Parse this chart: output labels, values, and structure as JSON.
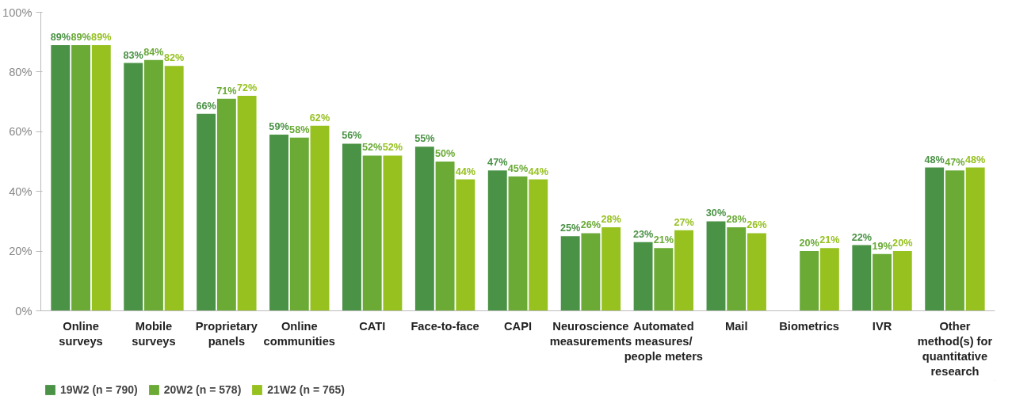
{
  "chart_data": {
    "type": "bar",
    "categories": [
      "Online surveys",
      "Mobile surveys",
      "Proprietary panels",
      "Online communities",
      "CATI",
      "Face-to-face",
      "CAPI",
      "Neuroscience measurements",
      "Automated measures/ people meters",
      "Mail",
      "Biometrics",
      "IVR",
      "Other method(s) for quantitative research"
    ],
    "series": [
      {
        "name": "19W2 (n = 790)",
        "color": "#4a9245",
        "values": [
          89,
          83,
          66,
          59,
          56,
          55,
          47,
          25,
          23,
          30,
          null,
          22,
          48
        ],
        "value_labels": [
          "89%",
          "83%",
          "66%",
          "59%",
          "56%",
          "55%",
          "47%",
          "25%",
          "23%",
          "30%",
          null,
          "22%",
          "48%"
        ]
      },
      {
        "name": "20W2 (n = 578)",
        "color": "#6aaa35",
        "values": [
          89,
          84,
          71,
          58,
          52,
          50,
          45,
          26,
          21,
          28,
          20,
          19,
          47
        ],
        "value_labels": [
          "89%",
          "84%",
          "71%",
          "58%",
          "52%",
          "50%",
          "45%",
          "26%",
          "21%",
          "28%",
          "20%",
          "19%",
          "47%"
        ]
      },
      {
        "name": "21W2 (n = 765)",
        "color": "#96c11f",
        "values": [
          89,
          82,
          72,
          62,
          52,
          44,
          44,
          28,
          27,
          26,
          21,
          20,
          48
        ],
        "value_labels": [
          "89%",
          "82%",
          "72%",
          "62%",
          "52%",
          "44%",
          "44%",
          "28%",
          "27%",
          "26%",
          "21%",
          "20%",
          "48%"
        ]
      }
    ],
    "ylim": [
      0,
      100
    ],
    "yticks": [
      {
        "value": 0,
        "label": "0%"
      },
      {
        "value": 20,
        "label": "20%"
      },
      {
        "value": 40,
        "label": "40%"
      },
      {
        "value": 60,
        "label": "60%"
      },
      {
        "value": 80,
        "label": "80%"
      },
      {
        "value": 100,
        "label": "100%"
      }
    ],
    "grid": false,
    "legend": "bottom left"
  }
}
